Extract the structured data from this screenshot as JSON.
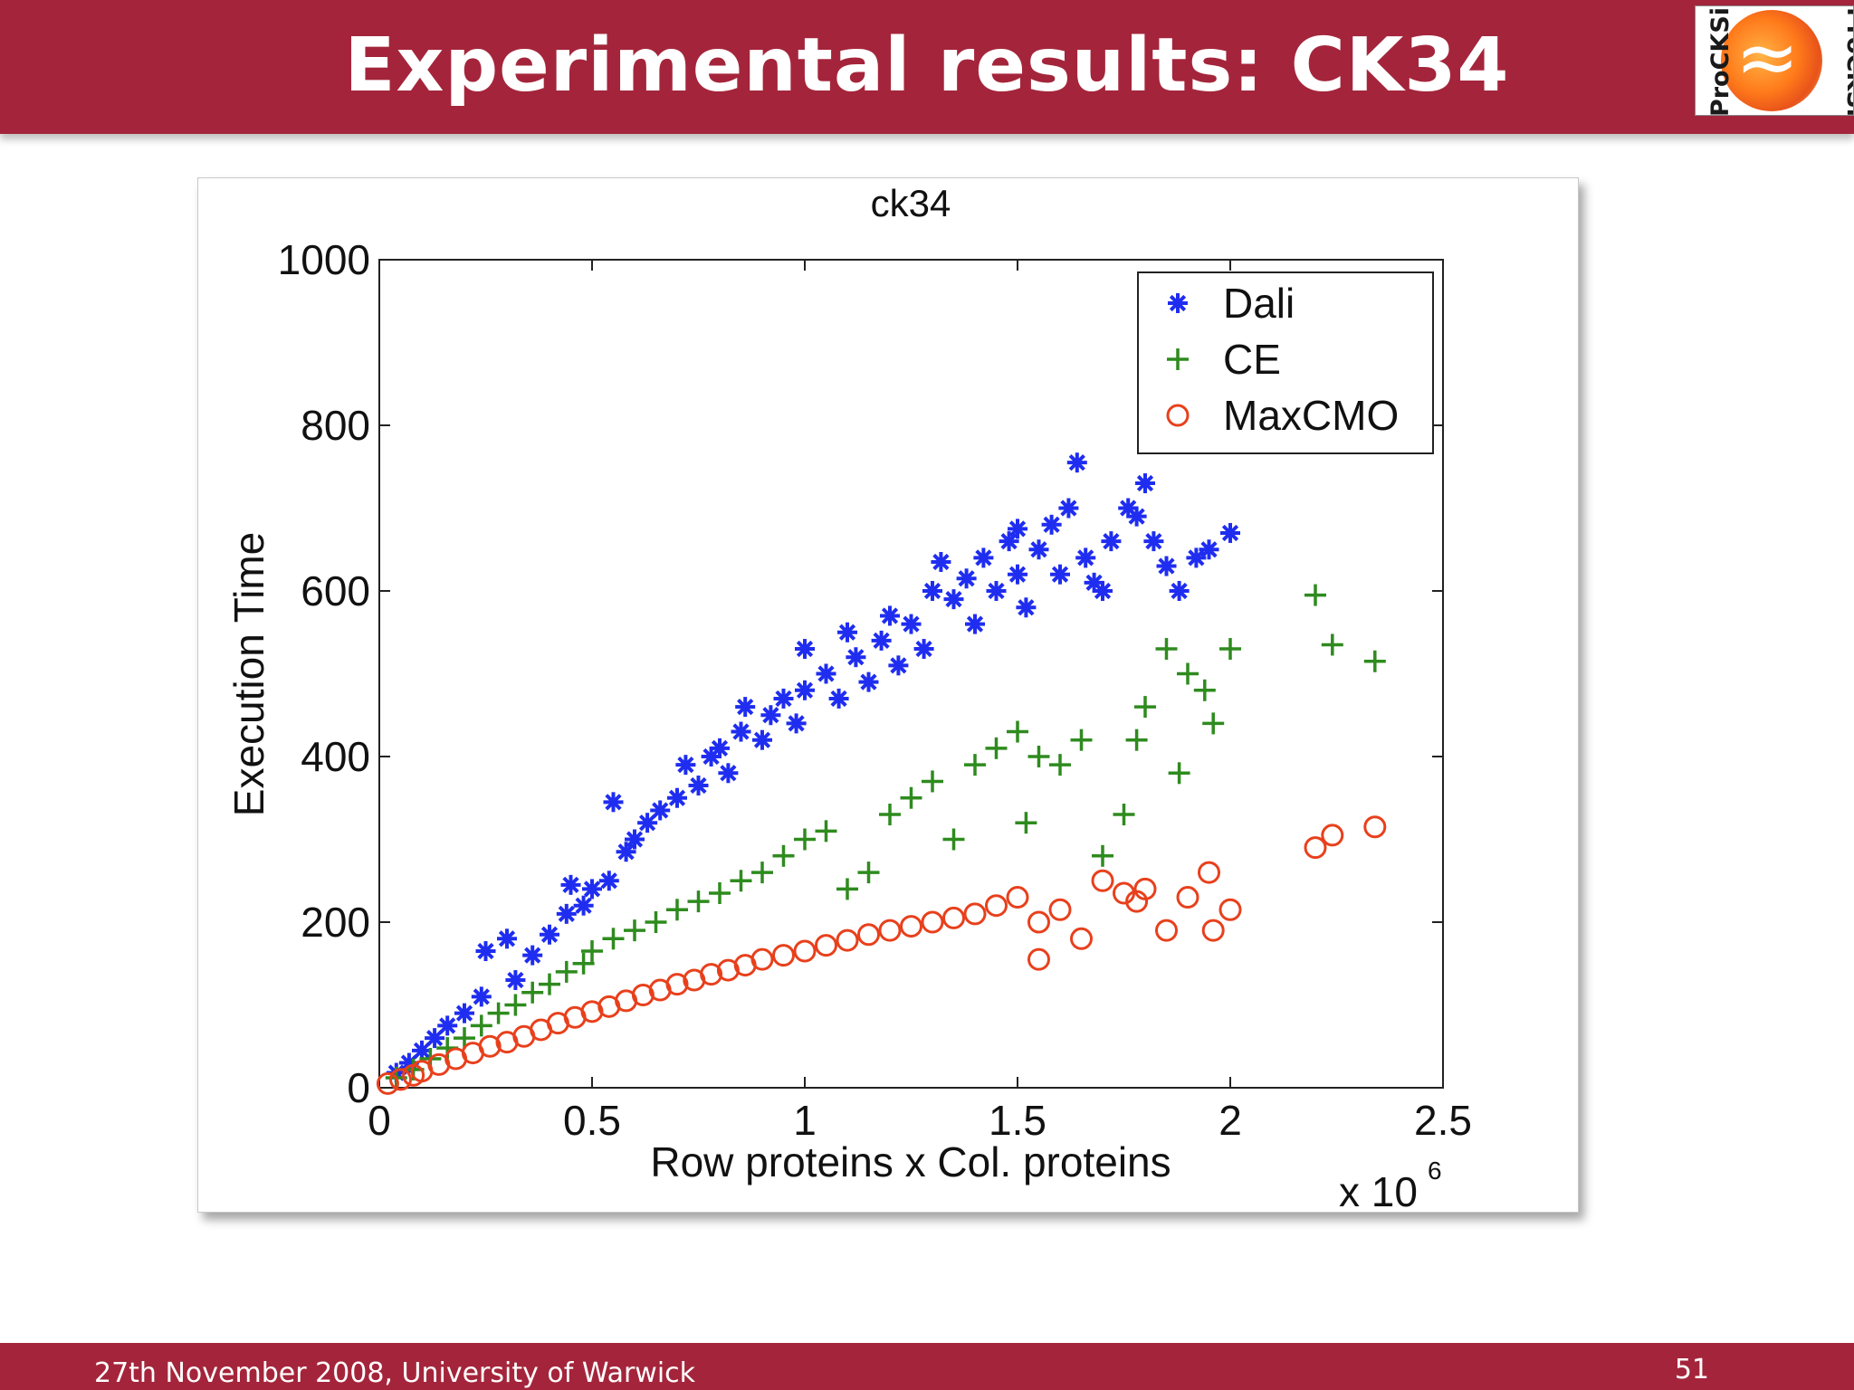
{
  "slide": {
    "title": "Experimental results: CK34",
    "footer": "27th November 2008, University of Warwick",
    "page_number": "51",
    "logo_text": "ProCKSi",
    "accent_color": "#a4253b"
  },
  "chart_data": {
    "type": "scatter",
    "title": "ck34",
    "xlabel": "Row proteins x Col. proteins",
    "ylabel": "Execution Time",
    "x_multiplier": "x 10",
    "x_exponent": "6",
    "xlim": [
      0,
      2.5
    ],
    "ylim": [
      0,
      1000
    ],
    "xticks": [
      "0",
      "0.5",
      "1",
      "1.5",
      "2",
      "2.5"
    ],
    "yticks": [
      "0",
      "200",
      "400",
      "600",
      "800",
      "1000"
    ],
    "legend_position": "top-right",
    "grid": false,
    "series": [
      {
        "name": "Dali",
        "marker": "asterisk",
        "color": "#1f2df0",
        "points": [
          [
            0.04,
            18
          ],
          [
            0.07,
            30
          ],
          [
            0.1,
            45
          ],
          [
            0.13,
            60
          ],
          [
            0.16,
            75
          ],
          [
            0.2,
            90
          ],
          [
            0.24,
            110
          ],
          [
            0.25,
            165
          ],
          [
            0.3,
            180
          ],
          [
            0.32,
            130
          ],
          [
            0.36,
            160
          ],
          [
            0.4,
            185
          ],
          [
            0.44,
            210
          ],
          [
            0.45,
            245
          ],
          [
            0.48,
            220
          ],
          [
            0.5,
            240
          ],
          [
            0.54,
            250
          ],
          [
            0.55,
            345
          ],
          [
            0.58,
            285
          ],
          [
            0.6,
            300
          ],
          [
            0.63,
            320
          ],
          [
            0.66,
            335
          ],
          [
            0.7,
            350
          ],
          [
            0.72,
            390
          ],
          [
            0.75,
            365
          ],
          [
            0.78,
            400
          ],
          [
            0.8,
            410
          ],
          [
            0.82,
            380
          ],
          [
            0.85,
            430
          ],
          [
            0.86,
            460
          ],
          [
            0.9,
            420
          ],
          [
            0.92,
            450
          ],
          [
            0.95,
            470
          ],
          [
            0.98,
            440
          ],
          [
            1.0,
            530
          ],
          [
            1.0,
            480
          ],
          [
            1.05,
            500
          ],
          [
            1.08,
            470
          ],
          [
            1.1,
            550
          ],
          [
            1.12,
            520
          ],
          [
            1.15,
            490
          ],
          [
            1.18,
            540
          ],
          [
            1.2,
            570
          ],
          [
            1.22,
            510
          ],
          [
            1.25,
            560
          ],
          [
            1.28,
            530
          ],
          [
            1.3,
            600
          ],
          [
            1.32,
            635
          ],
          [
            1.35,
            590
          ],
          [
            1.38,
            615
          ],
          [
            1.4,
            560
          ],
          [
            1.42,
            640
          ],
          [
            1.45,
            600
          ],
          [
            1.48,
            660
          ],
          [
            1.5,
            675
          ],
          [
            1.5,
            620
          ],
          [
            1.52,
            580
          ],
          [
            1.55,
            650
          ],
          [
            1.58,
            680
          ],
          [
            1.6,
            620
          ],
          [
            1.62,
            700
          ],
          [
            1.64,
            755
          ],
          [
            1.66,
            640
          ],
          [
            1.7,
            600
          ],
          [
            1.72,
            660
          ],
          [
            1.76,
            700
          ],
          [
            1.8,
            730
          ],
          [
            1.82,
            660
          ],
          [
            1.85,
            630
          ],
          [
            1.88,
            600
          ],
          [
            1.92,
            640
          ],
          [
            1.95,
            650
          ],
          [
            2.0,
            670
          ],
          [
            1.78,
            690
          ],
          [
            1.68,
            610
          ]
        ]
      },
      {
        "name": "CE",
        "marker": "plus",
        "color": "#2e8b1e",
        "points": [
          [
            0.04,
            12
          ],
          [
            0.08,
            22
          ],
          [
            0.12,
            35
          ],
          [
            0.16,
            48
          ],
          [
            0.2,
            60
          ],
          [
            0.24,
            75
          ],
          [
            0.28,
            90
          ],
          [
            0.32,
            100
          ],
          [
            0.36,
            115
          ],
          [
            0.4,
            125
          ],
          [
            0.44,
            140
          ],
          [
            0.48,
            150
          ],
          [
            0.5,
            165
          ],
          [
            0.55,
            180
          ],
          [
            0.6,
            190
          ],
          [
            0.65,
            200
          ],
          [
            0.7,
            215
          ],
          [
            0.75,
            225
          ],
          [
            0.8,
            235
          ],
          [
            0.85,
            250
          ],
          [
            0.9,
            260
          ],
          [
            0.95,
            280
          ],
          [
            1.0,
            300
          ],
          [
            1.05,
            310
          ],
          [
            1.1,
            240
          ],
          [
            1.15,
            260
          ],
          [
            1.2,
            330
          ],
          [
            1.25,
            350
          ],
          [
            1.3,
            370
          ],
          [
            1.35,
            300
          ],
          [
            1.4,
            390
          ],
          [
            1.45,
            410
          ],
          [
            1.5,
            430
          ],
          [
            1.52,
            320
          ],
          [
            1.55,
            400
          ],
          [
            1.6,
            390
          ],
          [
            1.65,
            420
          ],
          [
            1.7,
            280
          ],
          [
            1.75,
            330
          ],
          [
            1.8,
            460
          ],
          [
            1.85,
            530
          ],
          [
            1.9,
            500
          ],
          [
            1.94,
            480
          ],
          [
            1.96,
            440
          ],
          [
            2.0,
            530
          ],
          [
            2.2,
            595
          ],
          [
            2.24,
            535
          ],
          [
            2.34,
            515
          ],
          [
            1.88,
            380
          ],
          [
            1.78,
            420
          ]
        ]
      },
      {
        "name": "MaxCMO",
        "marker": "circle",
        "color": "#e8401c",
        "points": [
          [
            0.02,
            5
          ],
          [
            0.05,
            10
          ],
          [
            0.08,
            15
          ],
          [
            0.1,
            20
          ],
          [
            0.14,
            28
          ],
          [
            0.18,
            35
          ],
          [
            0.22,
            42
          ],
          [
            0.26,
            50
          ],
          [
            0.3,
            55
          ],
          [
            0.34,
            62
          ],
          [
            0.38,
            70
          ],
          [
            0.42,
            78
          ],
          [
            0.46,
            85
          ],
          [
            0.5,
            92
          ],
          [
            0.54,
            98
          ],
          [
            0.58,
            105
          ],
          [
            0.62,
            112
          ],
          [
            0.66,
            118
          ],
          [
            0.7,
            125
          ],
          [
            0.74,
            130
          ],
          [
            0.78,
            137
          ],
          [
            0.82,
            142
          ],
          [
            0.86,
            148
          ],
          [
            0.9,
            155
          ],
          [
            0.95,
            160
          ],
          [
            1.0,
            165
          ],
          [
            1.05,
            172
          ],
          [
            1.1,
            178
          ],
          [
            1.15,
            185
          ],
          [
            1.2,
            190
          ],
          [
            1.25,
            195
          ],
          [
            1.3,
            200
          ],
          [
            1.35,
            205
          ],
          [
            1.4,
            210
          ],
          [
            1.45,
            220
          ],
          [
            1.5,
            230
          ],
          [
            1.55,
            200
          ],
          [
            1.6,
            215
          ],
          [
            1.65,
            180
          ],
          [
            1.7,
            250
          ],
          [
            1.75,
            235
          ],
          [
            1.8,
            240
          ],
          [
            1.85,
            190
          ],
          [
            1.9,
            230
          ],
          [
            1.95,
            260
          ],
          [
            1.96,
            190
          ],
          [
            2.0,
            215
          ],
          [
            2.2,
            290
          ],
          [
            2.24,
            305
          ],
          [
            2.34,
            315
          ],
          [
            1.55,
            155
          ],
          [
            1.78,
            225
          ]
        ]
      }
    ]
  }
}
